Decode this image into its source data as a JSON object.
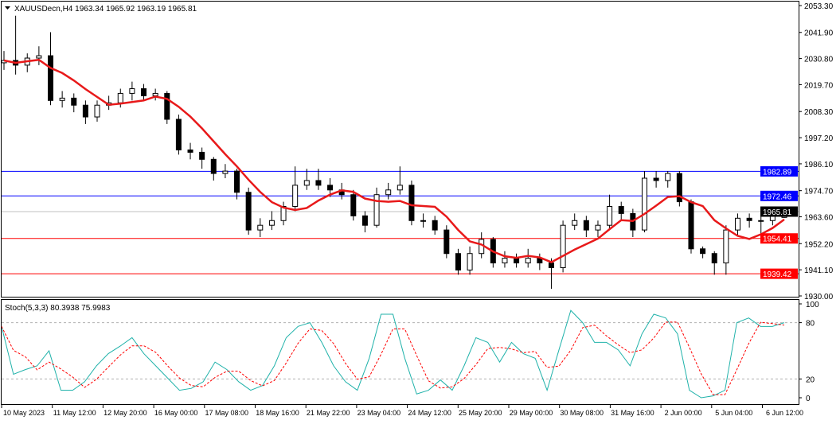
{
  "chart_data": {
    "type": "candlestick",
    "title": "XAUUSDecn,H4  1963.34 1965.92 1963.19 1965.81",
    "symbol": "XAUUSDecn,H4",
    "ylim": [
      1930.0,
      2053.3
    ],
    "yticks": [
      "2053.30",
      "2041.90",
      "2030.80",
      "2019.70",
      "2008.30",
      "1997.20",
      "1986.10",
      "1974.70",
      "1963.60",
      "1952.20",
      "1941.10",
      "1930.00"
    ],
    "xticks": [
      "10 May 2023",
      "11 May 12:00",
      "12 May 20:00",
      "16 May 00:00",
      "17 May 08:00",
      "18 May 16:00",
      "21 May 22:00",
      "23 May 04:00",
      "24 May 12:00",
      "25 May 20:00",
      "29 May 00:00",
      "30 May 08:00",
      "31 May 16:00",
      "2 Jun 00:00",
      "5 Jun 04:00",
      "6 Jun 12:00"
    ],
    "grid": false,
    "colors": {
      "bull": "#ffffff",
      "bear": "#000000",
      "ma": "#e8191a",
      "stoch_main": "#20b2aa",
      "stoch_signal": "#ff0000",
      "support": "#ff0000",
      "resistance": "#0000ff",
      "current": "#000000"
    },
    "levels": [
      {
        "value": 1982.89,
        "label": "1982.89",
        "color": "#0000ff"
      },
      {
        "value": 1972.46,
        "label": "1972.46",
        "color": "#0000ff"
      },
      {
        "value": 1954.41,
        "label": "1954.41",
        "color": "#ff0000"
      },
      {
        "value": 1939.42,
        "label": "1939.42",
        "color": "#ff0000"
      }
    ],
    "current_price": {
      "value": 1965.81,
      "label": "1965.81"
    },
    "ohlc": [
      [
        2029,
        2034,
        2026,
        2030
      ],
      [
        2030,
        2049,
        2024,
        2028
      ],
      [
        2028,
        2033,
        2025,
        2031
      ],
      [
        2031,
        2036,
        2028,
        2032
      ],
      [
        2032,
        2042,
        2011,
        2013
      ],
      [
        2013,
        2017,
        2010,
        2014
      ],
      [
        2014,
        2016,
        2008,
        2011
      ],
      [
        2011,
        2013,
        2003,
        2006
      ],
      [
        2006,
        2013,
        2004,
        2011
      ],
      [
        2011,
        2015,
        2009,
        2012
      ],
      [
        2012,
        2018,
        2010,
        2016
      ],
      [
        2016,
        2021,
        2013,
        2018
      ],
      [
        2018,
        2020,
        2013,
        2015
      ],
      [
        2015,
        2018,
        2013,
        2016
      ],
      [
        2016,
        2017,
        2003,
        2005
      ],
      [
        2005,
        2007,
        1990,
        1992
      ],
      [
        1992,
        1995,
        1988,
        1991
      ],
      [
        1991,
        1993,
        1984,
        1988
      ],
      [
        1988,
        1989,
        1979,
        1982
      ],
      [
        1982,
        1986,
        1980,
        1983
      ],
      [
        1983,
        1984,
        1971,
        1974
      ],
      [
        1974,
        1976,
        1956,
        1958
      ],
      [
        1958,
        1963,
        1955,
        1960
      ],
      [
        1960,
        1966,
        1958,
        1962
      ],
      [
        1962,
        1970,
        1960,
        1968
      ],
      [
        1968,
        1985,
        1966,
        1977
      ],
      [
        1977,
        1984,
        1975,
        1979
      ],
      [
        1979,
        1984,
        1975,
        1977
      ],
      [
        1977,
        1980,
        1972,
        1975
      ],
      [
        1975,
        1978,
        1971,
        1973
      ],
      [
        1973,
        1975,
        1962,
        1964
      ],
      [
        1964,
        1966,
        1957,
        1960
      ],
      [
        1960,
        1976,
        1959,
        1973
      ],
      [
        1973,
        1978,
        1971,
        1975
      ],
      [
        1975,
        1985,
        1973,
        1977
      ],
      [
        1977,
        1979,
        1960,
        1962
      ],
      [
        1962,
        1965,
        1959,
        1962
      ],
      [
        1962,
        1964,
        1956,
        1958
      ],
      [
        1958,
        1960,
        1946,
        1948
      ],
      [
        1948,
        1950,
        1939,
        1941
      ],
      [
        1941,
        1951,
        1939,
        1948
      ],
      [
        1948,
        1957,
        1946,
        1954
      ],
      [
        1954,
        1955,
        1942,
        1944
      ],
      [
        1944,
        1949,
        1942,
        1946
      ],
      [
        1946,
        1948,
        1942,
        1944
      ],
      [
        1944,
        1950,
        1942,
        1946
      ],
      [
        1946,
        1948,
        1941,
        1944
      ],
      [
        1944,
        1946,
        1933,
        1942
      ],
      [
        1942,
        1962,
        1940,
        1960
      ],
      [
        1960,
        1965,
        1958,
        1962
      ],
      [
        1962,
        1964,
        1955,
        1958
      ],
      [
        1958,
        1962,
        1955,
        1960
      ],
      [
        1960,
        1973,
        1958,
        1968
      ],
      [
        1968,
        1970,
        1962,
        1965
      ],
      [
        1965,
        1967,
        1955,
        1958
      ],
      [
        1958,
        1983,
        1957,
        1980
      ],
      [
        1980,
        1983,
        1976,
        1979
      ],
      [
        1979,
        1983,
        1976,
        1982
      ],
      [
        1982,
        1983,
        1968,
        1970
      ],
      [
        1970,
        1971,
        1948,
        1950
      ],
      [
        1950,
        1951,
        1946,
        1948
      ],
      [
        1948,
        1949,
        1939,
        1944
      ],
      [
        1944,
        1960,
        1939,
        1958
      ],
      [
        1958,
        1965,
        1956,
        1963
      ],
      [
        1963,
        1965,
        1959,
        1962
      ],
      [
        1962,
        1965,
        1956,
        1962
      ],
      [
        1962,
        1966,
        1960,
        1964
      ],
      [
        1963.34,
        1965.92,
        1963.19,
        1965.81
      ]
    ],
    "ma_label": "",
    "stochastic": {
      "label": "Stoch(5,3,3) 80.3938 75.9983",
      "ylim": [
        0,
        100
      ],
      "yticks": [
        "100",
        "80",
        "20",
        "0"
      ],
      "levels": [
        80,
        20
      ],
      "main_last": 80.3938,
      "signal_last": 75.9983,
      "main": [
        76,
        25,
        30,
        34,
        50,
        8,
        8,
        17,
        34,
        47,
        55,
        64,
        47,
        34,
        21,
        8,
        10,
        17,
        38,
        30,
        17,
        8,
        13,
        34,
        64,
        76,
        80,
        59,
        34,
        17,
        8,
        42,
        89,
        89,
        42,
        4,
        8,
        19,
        8,
        34,
        64,
        59,
        38,
        59,
        47,
        42,
        8,
        51,
        93,
        80,
        59,
        59,
        51,
        34,
        68,
        89,
        85,
        68,
        8,
        0,
        2,
        8,
        80,
        85,
        76,
        76,
        80
      ]
    }
  }
}
